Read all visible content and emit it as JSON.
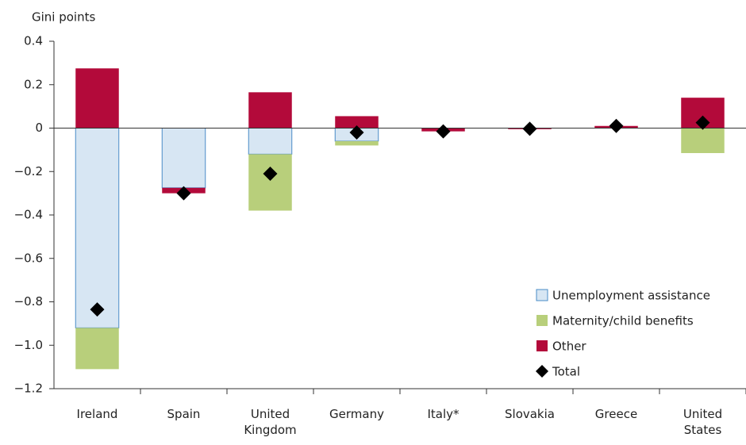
{
  "chart_data": {
    "type": "bar",
    "stacked": true,
    "y_label": "Gini points",
    "categories": [
      "Ireland",
      "Spain",
      "United Kingdom",
      "Germany",
      "Italy*",
      "Slovakia",
      "Greece",
      "United States"
    ],
    "series": [
      {
        "name": "Unemployment assistance",
        "color": "#d7e6f3",
        "edge": "#4a8cc7",
        "values": [
          -0.92,
          -0.275,
          -0.12,
          -0.06,
          0,
          0,
          0,
          0
        ]
      },
      {
        "name": "Maternity/child benefits",
        "color": "#b8cf7b",
        "values": [
          -0.19,
          0,
          -0.26,
          -0.02,
          0,
          0,
          0,
          -0.115
        ]
      },
      {
        "name": "Other",
        "color": "#b30a3a",
        "values": [
          0.275,
          -0.025,
          0.165,
          0.055,
          -0.015,
          -0.005,
          0.01,
          0.14
        ]
      },
      {
        "name": "Total",
        "type": "scatter",
        "marker": "diamond",
        "color": "#000000",
        "values": [
          -0.835,
          -0.3,
          -0.21,
          -0.02,
          -0.015,
          -0.003,
          0.01,
          0.025
        ]
      }
    ],
    "ylim": [
      -1.2,
      0.4
    ],
    "yticks": [
      {
        "value": -1.2,
        "label": "−1.2"
      },
      {
        "value": -1.0,
        "label": "−1.0"
      },
      {
        "value": -0.8,
        "label": "−0.8"
      },
      {
        "value": -0.6,
        "label": "−0.6"
      },
      {
        "value": -0.4,
        "label": "−0.4"
      },
      {
        "value": -0.2,
        "label": "−0.2"
      },
      0,
      0.2,
      0.4
    ],
    "grid": false,
    "legend": "lower right"
  }
}
